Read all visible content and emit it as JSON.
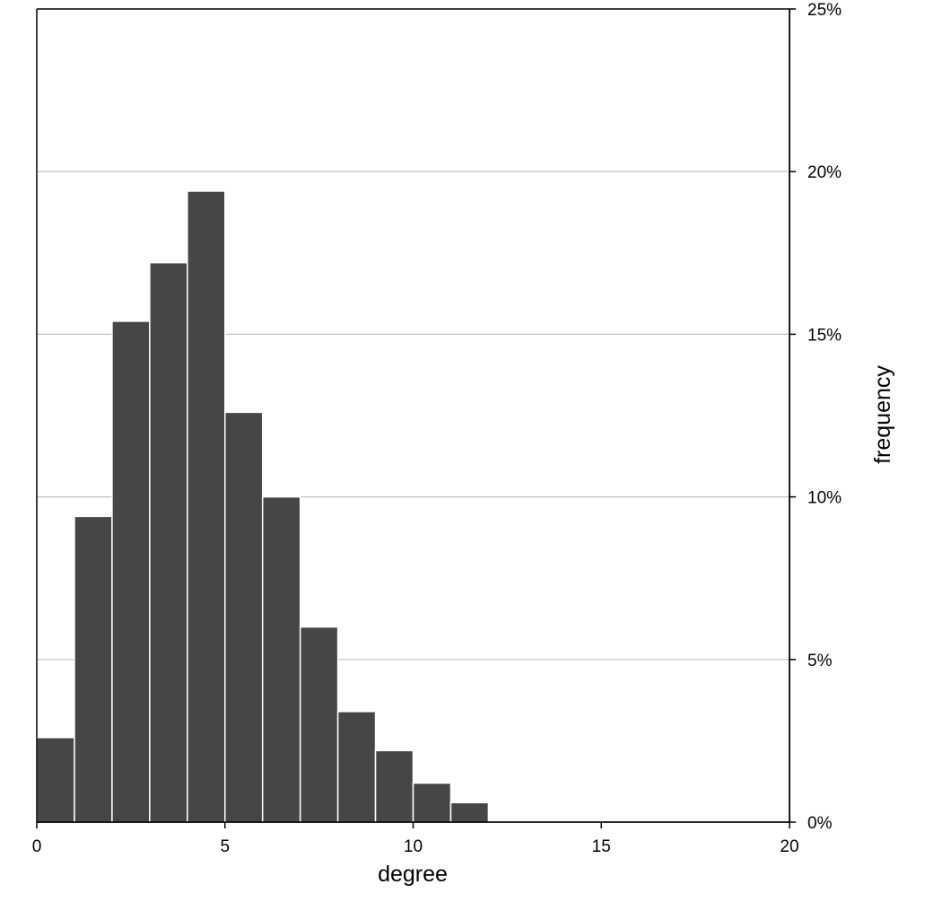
{
  "chart_data": {
    "type": "bar",
    "bin_width": 1,
    "bin_edges": [
      0,
      1,
      2,
      3,
      4,
      5,
      6,
      7,
      8,
      9,
      10,
      11,
      12
    ],
    "values": [
      2.6,
      9.4,
      15.4,
      17.2,
      19.4,
      12.6,
      10.0,
      6.0,
      3.4,
      2.2,
      1.2,
      0.6
    ],
    "title": "",
    "xlabel": "degree",
    "ylabel": "frequency",
    "xlim": [
      0,
      20
    ],
    "ylim": [
      0,
      25
    ],
    "x_ticks": [
      0,
      5,
      10,
      15,
      20
    ],
    "x_tick_labels": [
      "0",
      "5",
      "10",
      "15",
      "20"
    ],
    "y_ticks": [
      0,
      5,
      10,
      15,
      20,
      25
    ],
    "y_tick_labels": [
      "0%",
      "5%",
      "10%",
      "15%",
      "20%",
      "25%"
    ],
    "y_axis_side": "right",
    "grid": "horizontal",
    "legend": "none",
    "colors": {
      "bar_fill": "#464646",
      "bar_edge": "#ffffff",
      "grid": "#bfbfbf",
      "axis": "#000000"
    }
  }
}
